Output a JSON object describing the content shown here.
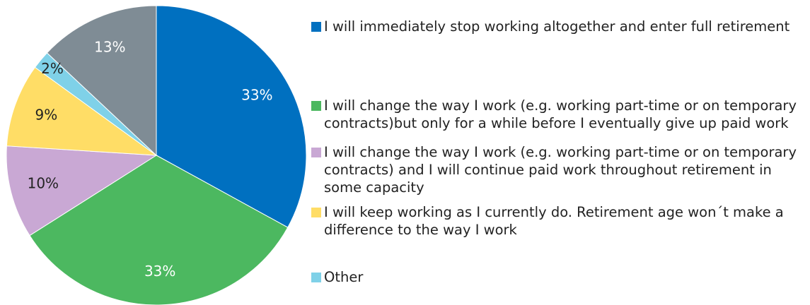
{
  "chart_data": {
    "type": "pie",
    "categories": [
      "I will immediately stop working altogether and enter full retirement",
      "I will change the way I work (e.g. working part-time or on temporary contracts)but only for a while before I eventually give up paid work",
      "I will change the way I work (e.g. working part-time or on temporary contracts) and I will continue paid work throughout retirement in some capacity",
      "I will keep working as I currently do. Retirement age won´t make a difference to the way I work",
      "Other",
      null
    ],
    "values": [
      33,
      33,
      10,
      9,
      2,
      13
    ],
    "value_labels": [
      "33%",
      "33%",
      "10%",
      "9%",
      "2%",
      "13%"
    ],
    "colors": [
      "#0070c0",
      "#4cb860",
      "#c9a8d4",
      "#ffdd66",
      "#7fd1e8",
      "#7f8c95"
    ]
  }
}
